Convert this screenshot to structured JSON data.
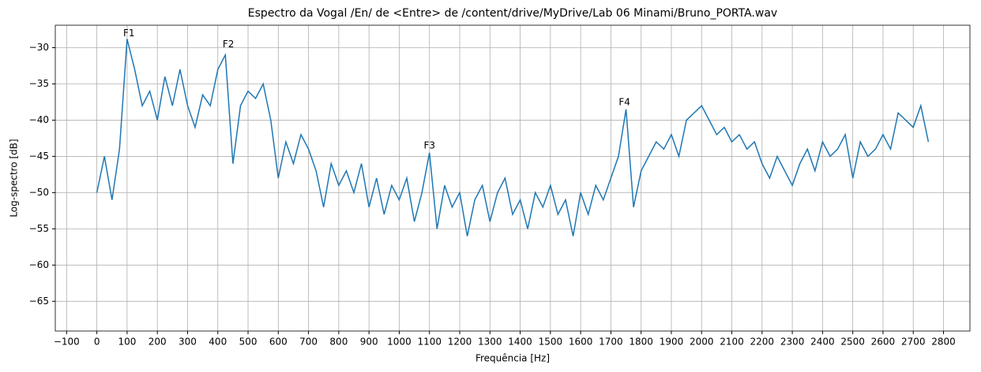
{
  "chart_data": {
    "type": "line",
    "title": "Espectro da Vogal /En/ de <Entre> de /content/drive/MyDrive/Lab 06 Minami/Bruno_PORTA.wav",
    "xlabel": "Frequência [Hz]",
    "ylabel": "Log-spectro [dB]",
    "color": "#1f77b4",
    "grid": true,
    "x": [
      0,
      25,
      50,
      75,
      100,
      125,
      150,
      175,
      200,
      225,
      250,
      275,
      300,
      325,
      350,
      375,
      400,
      425,
      450,
      475,
      500,
      525,
      550,
      575,
      600,
      625,
      650,
      675,
      700,
      725,
      750,
      775,
      800,
      825,
      850,
      875,
      900,
      925,
      950,
      975,
      1000,
      1025,
      1050,
      1075,
      1100,
      1125,
      1150,
      1175,
      1200,
      1225,
      1250,
      1275,
      1300,
      1325,
      1350,
      1375,
      1400,
      1425,
      1450,
      1475,
      1500,
      1525,
      1550,
      1575,
      1600,
      1625,
      1650,
      1675,
      1700,
      1725,
      1750,
      1775,
      1800,
      1825,
      1850,
      1875,
      1900,
      1925,
      1950,
      1975,
      2000,
      2025,
      2050,
      2075,
      2100,
      2125,
      2150,
      2175,
      2200,
      2225,
      2250,
      2275,
      2300,
      2325,
      2350,
      2375,
      2400,
      2425,
      2450,
      2475,
      2500,
      2525,
      2550,
      2575,
      2600,
      2625,
      2650,
      2675,
      2700,
      2725,
      2750
    ],
    "values": [
      -50,
      -45,
      -51,
      -44,
      -28.8,
      -33,
      -38,
      -36,
      -40,
      -34,
      -38,
      -33,
      -38,
      -41,
      -36.5,
      -38,
      -33,
      -31,
      -46,
      -38,
      -36,
      -37,
      -35,
      -40,
      -48,
      -43,
      -46,
      -42,
      -44,
      -47,
      -52,
      -46,
      -49,
      -47,
      -50,
      -46,
      -52,
      -48,
      -53,
      -49,
      -51,
      -48,
      -54,
      -50,
      -44.5,
      -55,
      -49,
      -52,
      -50,
      -56,
      -51,
      -49,
      -54,
      -50,
      -48,
      -53,
      -51,
      -55,
      -50,
      -52,
      -49,
      -53,
      -51,
      -56,
      -50,
      -53,
      -49,
      -51,
      -48,
      -45,
      -38.5,
      -52,
      -47,
      -45,
      -43,
      -44,
      -42,
      -45,
      -40,
      -39,
      -38,
      -40,
      -42,
      -41,
      -43,
      -42,
      -44,
      -43,
      -46,
      -48,
      -45,
      -47,
      -49,
      -46,
      -44,
      -47,
      -43,
      -45,
      -44,
      -42,
      -48,
      -43,
      -45,
      -44,
      -42,
      -44,
      -39,
      -40,
      -41,
      -38,
      -43
    ],
    "annotations": [
      {
        "text": "F1",
        "x": 106,
        "y": -28.5
      },
      {
        "text": "F2",
        "x": 435,
        "y": -30
      },
      {
        "text": "F3",
        "x": 1100,
        "y": -44
      },
      {
        "text": "F4",
        "x": 1745,
        "y": -38
      }
    ],
    "xlim": [
      -137.5,
      2887.5
    ],
    "xticks": [
      {
        "value": -100,
        "label": "−100"
      },
      0,
      100,
      200,
      300,
      400,
      500,
      600,
      700,
      800,
      900,
      1000,
      1100,
      1200,
      1300,
      1400,
      1500,
      1600,
      1700,
      1800,
      1900,
      2000,
      2100,
      2200,
      2300,
      2400,
      2500,
      2600,
      2700,
      2800
    ],
    "ylim": [
      -69.1,
      -26.9
    ],
    "yticks": [
      {
        "value": -65,
        "label": "−65"
      },
      {
        "value": -60,
        "label": "−60"
      },
      {
        "value": -55,
        "label": "−55"
      },
      {
        "value": -50,
        "label": "−50"
      },
      {
        "value": -45,
        "label": "−45"
      },
      {
        "value": -40,
        "label": "−40"
      },
      {
        "value": -35,
        "label": "−35"
      },
      {
        "value": -30,
        "label": "−30"
      }
    ]
  }
}
